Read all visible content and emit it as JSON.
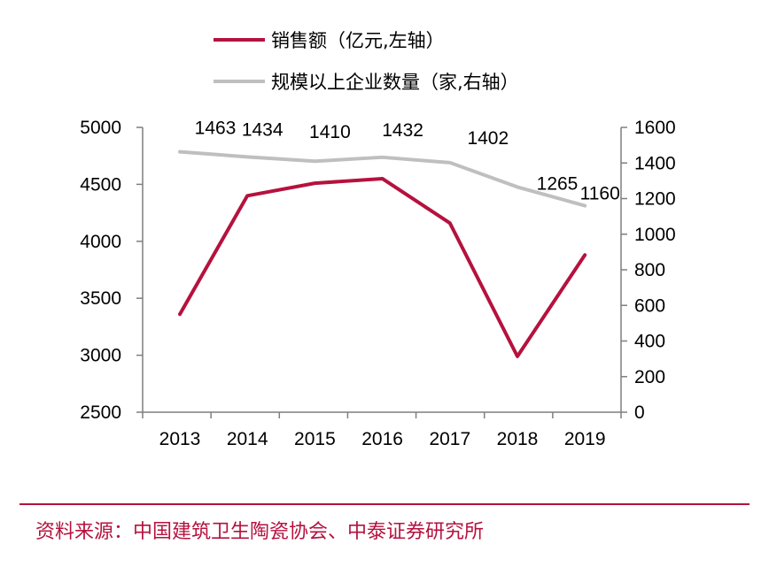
{
  "colors": {
    "sales": "#B5123E",
    "enterprises": "#BFBFBF",
    "axis": "#7F7F7F",
    "source_text": "#B5123E"
  },
  "chart_data": {
    "type": "line",
    "categories": [
      "2013",
      "2014",
      "2015",
      "2016",
      "2017",
      "2018",
      "2019"
    ],
    "series": [
      {
        "name": "销售额（亿元,左轴）",
        "axis": "left",
        "values": [
          3360,
          4400,
          4510,
          4550,
          4160,
          2990,
          3880
        ]
      },
      {
        "name": "规模以上企业数量（家,右轴）",
        "axis": "right",
        "values": [
          1463,
          1434,
          1410,
          1432,
          1402,
          1265,
          1160
        ],
        "plotted_values": [
          1463,
          1434,
          1410,
          1432,
          1402,
          1265,
          1160
        ],
        "labels": [
          "1463",
          "1434",
          "1410",
          "1432",
          "1402",
          "1265",
          "1160"
        ]
      }
    ],
    "y_left": {
      "min": 2500,
      "max": 5000,
      "ticks": [
        5000,
        4500,
        4000,
        3500,
        3000,
        2500
      ]
    },
    "y_right": {
      "min": 0,
      "max": 1600,
      "ticks": [
        1600,
        1400,
        1200,
        1000,
        800,
        600,
        400,
        200,
        0
      ]
    },
    "legend_position": "top-left",
    "grid": false
  },
  "source": "资料来源：中国建筑卫生陶瓷协会、中泰证券研究所"
}
